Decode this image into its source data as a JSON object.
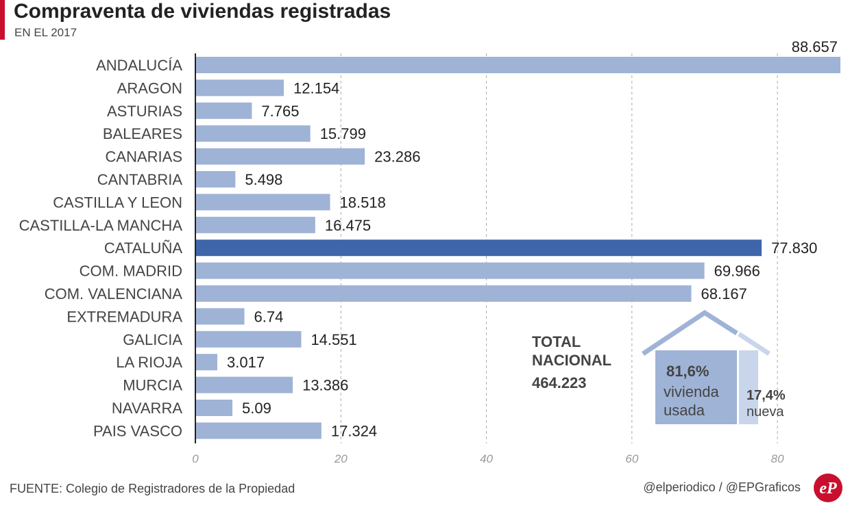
{
  "header": {
    "title": "Compraventa de viviendas registradas",
    "subtitle": "EN EL 2017"
  },
  "colors": {
    "bar": "#9fb3d6",
    "highlight": "#3f66aa",
    "new_home": "#c9d5ea",
    "brand": "#c8102e"
  },
  "chart_data": {
    "type": "bar",
    "orientation": "horizontal",
    "categories": [
      "ANDALUCÍA",
      "ARAGON",
      "ASTURIAS",
      "BALEARES",
      "CANARIAS",
      "CANTABRIA",
      "CASTILLA Y LEON",
      "CASTILLA-LA MANCHA",
      "CATALUÑA",
      "COM. MADRID",
      "COM. VALENCIANA",
      "EXTREMADURA",
      "GALICIA",
      "LA RIOJA",
      "MURCIA",
      "NAVARRA",
      "PAIS VASCO"
    ],
    "values": [
      88.657,
      12.154,
      7.765,
      15.799,
      23.286,
      5.498,
      18.518,
      16.475,
      77.83,
      69.966,
      68.167,
      6.74,
      14.551,
      3.017,
      13.386,
      5.09,
      17.324
    ],
    "value_labels": [
      "88.657",
      "12.154",
      "7.765",
      "15.799",
      "23.286",
      "5.498",
      "18.518",
      "16.475",
      "77.830",
      "69.966",
      "68.167",
      "6.74",
      "14.551",
      "3.017",
      "13.386",
      "5.09",
      "17.324"
    ],
    "highlight": "CATALUÑA",
    "x_ticks": [
      "0",
      "20",
      "40",
      "60",
      "80"
    ],
    "xlim": [
      0,
      88.657
    ],
    "grid": "vertical dashed"
  },
  "total_box": {
    "line1": "TOTAL",
    "line2": "NACIONAL",
    "value": "464.223",
    "used_pct": "81,6%",
    "used_line1": "vivienda",
    "used_line2": "usada",
    "new_pct": "17,4%",
    "new_line1": "nueva"
  },
  "footer": {
    "source": "FUENTE: Colegio de Registradores de la Propiedad",
    "credit": "@elperiodico / @EPGraficos",
    "logo_text": "eP"
  }
}
